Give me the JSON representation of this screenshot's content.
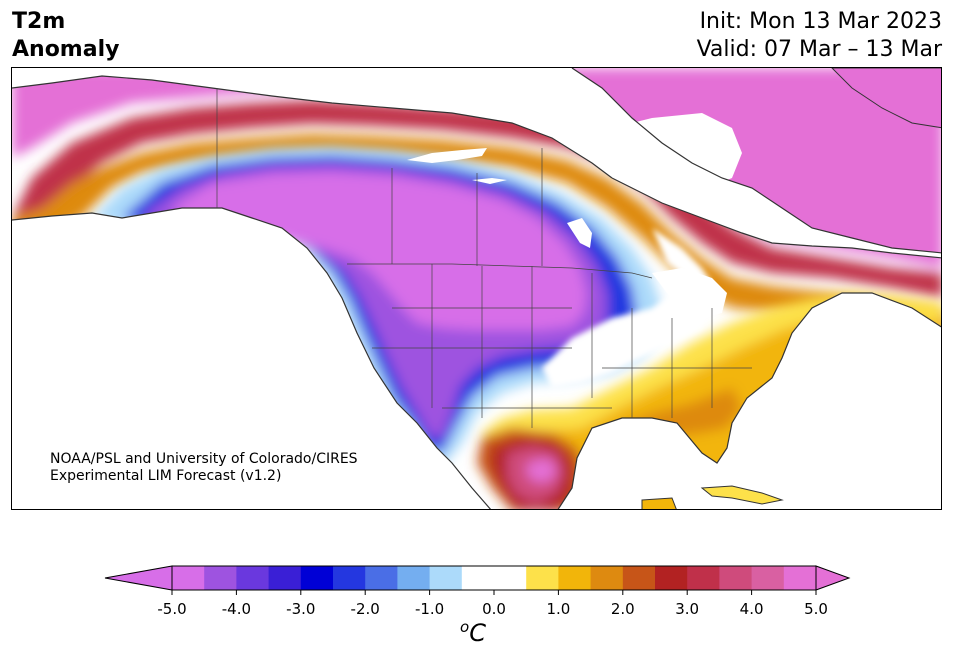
{
  "header": {
    "title_line1": "T2m",
    "title_line2": "Anomaly",
    "init_line": "Init: Mon 13 Mar 2023",
    "valid_line": "Valid: 07 Mar – 13 Mar"
  },
  "map": {
    "region": "North America",
    "credit_line1": "NOAA/PSL and University of Colorado/CIRES",
    "credit_line2": "Experimental LIM Forecast (v1.2)"
  },
  "colorbar": {
    "unit_base": "C",
    "unit_prefix": "o",
    "ticks": [
      {
        "value": -5.0,
        "label": "-5.0"
      },
      {
        "value": -4.0,
        "label": "-4.0"
      },
      {
        "value": -3.0,
        "label": "-3.0"
      },
      {
        "value": -2.0,
        "label": "-2.0"
      },
      {
        "value": -1.0,
        "label": "-1.0"
      },
      {
        "value": 0.0,
        "label": "0.0"
      },
      {
        "value": 1.0,
        "label": "1.0"
      },
      {
        "value": 2.0,
        "label": "2.0"
      },
      {
        "value": 3.0,
        "label": "3.0"
      },
      {
        "value": 4.0,
        "label": "4.0"
      },
      {
        "value": 5.0,
        "label": "5.0"
      }
    ],
    "min": -5.0,
    "max": 5.0,
    "extend": "both",
    "levels": [
      {
        "from": -5.0,
        "to": -4.5,
        "color": "#d76ee8"
      },
      {
        "from": -4.5,
        "to": -4.0,
        "color": "#9e53e0"
      },
      {
        "from": -4.0,
        "to": -3.5,
        "color": "#6a38de"
      },
      {
        "from": -3.5,
        "to": -3.0,
        "color": "#3a1fd6"
      },
      {
        "from": -3.0,
        "to": -2.5,
        "color": "#0000d6"
      },
      {
        "from": -2.5,
        "to": -2.0,
        "color": "#2437e0"
      },
      {
        "from": -2.0,
        "to": -1.5,
        "color": "#4a6ee6"
      },
      {
        "from": -1.5,
        "to": -1.0,
        "color": "#74aef0"
      },
      {
        "from": -1.0,
        "to": -0.5,
        "color": "#acdafa"
      },
      {
        "from": -0.5,
        "to": 0.5,
        "color": "#ffffff"
      },
      {
        "from": 0.5,
        "to": 1.0,
        "color": "#fde14a"
      },
      {
        "from": 1.0,
        "to": 1.5,
        "color": "#f2b50a"
      },
      {
        "from": 1.5,
        "to": 2.0,
        "color": "#de8a10"
      },
      {
        "from": 2.0,
        "to": 2.5,
        "color": "#c75518"
      },
      {
        "from": 2.5,
        "to": 3.0,
        "color": "#b22222"
      },
      {
        "from": 3.0,
        "to": 3.5,
        "color": "#c0304a"
      },
      {
        "from": 3.5,
        "to": 4.0,
        "color": "#cf4b7c"
      },
      {
        "from": 4.0,
        "to": 4.5,
        "color": "#d960a2"
      },
      {
        "from": 4.5,
        "to": 5.0,
        "color": "#e470d6"
      }
    ],
    "under_color": "#d76ee8",
    "over_color": "#e470d6"
  }
}
